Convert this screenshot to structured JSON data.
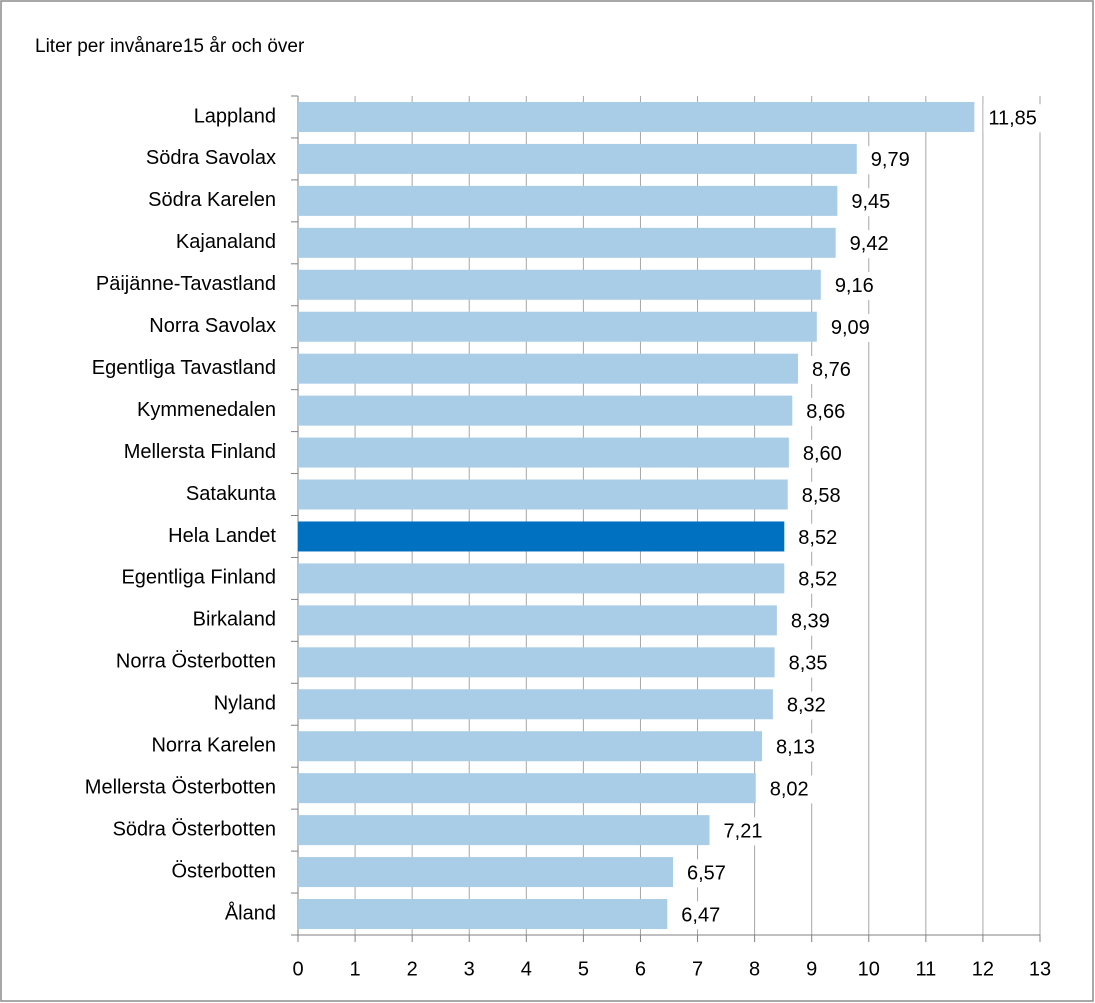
{
  "chart_data": {
    "type": "bar",
    "orientation": "horizontal",
    "title": "Liter per invånare15 år och över",
    "categories": [
      "Lappland",
      "Södra Savolax",
      "Södra Karelen",
      "Kajanaland",
      "Päijänne-Tavastland",
      "Norra Savolax",
      "Egentliga Tavastland",
      "Kymmenedalen",
      "Mellersta Finland",
      "Satakunta",
      "Hela Landet",
      "Egentliga Finland",
      "Birkaland",
      "Norra Österbotten",
      "Nyland",
      "Norra Karelen",
      "Mellersta Österbotten",
      "Södra Österbotten",
      "Österbotten",
      "Åland"
    ],
    "values": [
      11.85,
      9.79,
      9.45,
      9.42,
      9.16,
      9.09,
      8.76,
      8.66,
      8.6,
      8.58,
      8.52,
      8.52,
      8.39,
      8.35,
      8.32,
      8.13,
      8.02,
      7.21,
      6.57,
      6.47
    ],
    "value_labels": [
      "11,85",
      "9,79",
      "9,45",
      "9,42",
      "9,16",
      "9,09",
      "8,76",
      "8,66",
      "8,60",
      "8,58",
      "8,52",
      "8,52",
      "8,39",
      "8,35",
      "8,32",
      "8,13",
      "8,02",
      "7,21",
      "6,57",
      "6,47"
    ],
    "colors": [
      "#a9cde6",
      "#a9cde6",
      "#a9cde6",
      "#a9cde6",
      "#a9cde6",
      "#a9cde6",
      "#a9cde6",
      "#a9cde6",
      "#a9cde6",
      "#a9cde6",
      "#0070c0",
      "#a9cde6",
      "#a9cde6",
      "#a9cde6",
      "#a9cde6",
      "#a9cde6",
      "#a9cde6",
      "#a9cde6",
      "#a9cde6",
      "#a9cde6"
    ],
    "xlim": [
      0,
      13
    ],
    "xticks": [
      0,
      1,
      2,
      3,
      4,
      5,
      6,
      7,
      8,
      9,
      10,
      11,
      12,
      13
    ],
    "grid": true
  }
}
